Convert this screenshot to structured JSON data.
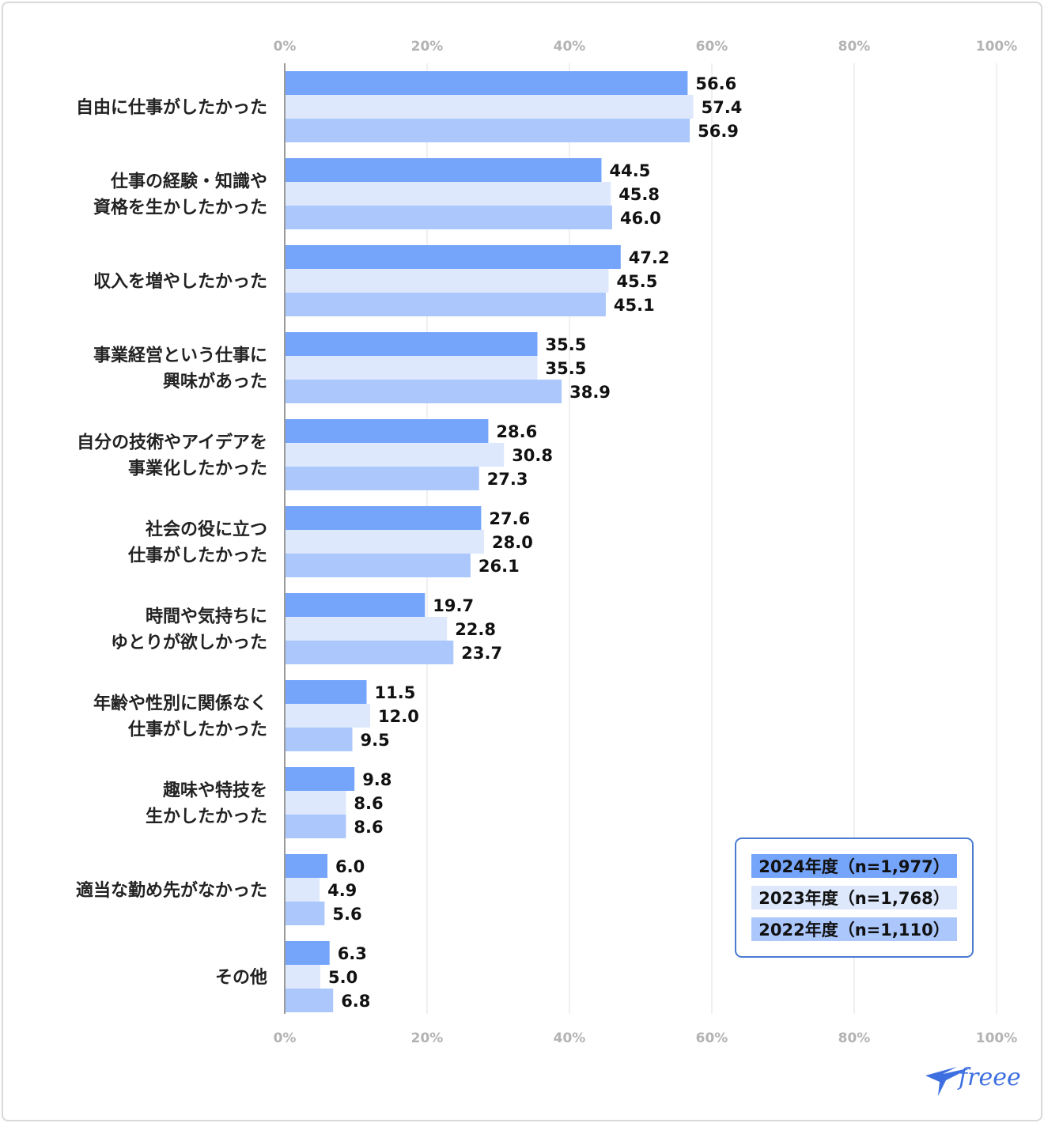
{
  "chart_data": {
    "type": "bar",
    "orientation": "horizontal",
    "categories": [
      [
        "自由に仕事がしたかった"
      ],
      [
        "仕事の経験・知識や",
        "資格を生かしたかった"
      ],
      [
        "収入を増やしたかった"
      ],
      [
        "事業経営という仕事に",
        "興味があった"
      ],
      [
        "自分の技術やアイデアを",
        "事業化したかった"
      ],
      [
        "社会の役に立つ",
        "仕事がしたかった"
      ],
      [
        "時間や気持ちに",
        "ゆとりが欲しかった"
      ],
      [
        "年齢や性別に関係なく",
        "仕事がしたかった"
      ],
      [
        "趣味や特技を",
        "生かしたかった"
      ],
      [
        "適当な勤め先がなかった"
      ],
      [
        "その他"
      ]
    ],
    "series": [
      {
        "name": "2024年度（n=1,977）",
        "color": "#75a4fb",
        "values": [
          56.6,
          44.5,
          47.2,
          35.5,
          28.6,
          27.6,
          19.7,
          11.5,
          9.8,
          6.0,
          6.3
        ],
        "labels": [
          "56.6",
          "44.5",
          "47.2",
          "35.5",
          "28.6",
          "27.6",
          "19.7",
          "11.5",
          "9.8",
          "6.0",
          "6.3"
        ]
      },
      {
        "name": "2023年度（n=1,768）",
        "color": "#dde8fd",
        "values": [
          57.4,
          45.8,
          45.5,
          35.5,
          30.8,
          28.0,
          22.8,
          12.0,
          8.6,
          4.9,
          5.0
        ],
        "labels": [
          "57.4",
          "45.8",
          "45.5",
          "35.5",
          "30.8",
          "28.0",
          "22.8",
          "12.0",
          "8.6",
          "4.9",
          "5.0"
        ]
      },
      {
        "name": "2022年度（n=1,110）",
        "color": "#abc7fc",
        "values": [
          56.9,
          46.0,
          45.1,
          38.9,
          27.3,
          26.1,
          23.7,
          9.5,
          8.6,
          5.6,
          6.8
        ],
        "labels": [
          "56.9",
          "46.0",
          "45.1",
          "38.9",
          "27.3",
          "26.1",
          "23.7",
          "9.5",
          "8.6",
          "5.6",
          "6.8"
        ]
      }
    ],
    "xlim": [
      0,
      100
    ],
    "xticks": [
      "0%",
      "20%",
      "40%",
      "60%",
      "80%",
      "100%"
    ],
    "grid": true,
    "legend_position": "bottom-right",
    "axis_color": "#9a9a9a",
    "grid_color": "#ececec",
    "legend_border_color": "#4a7bd0"
  },
  "brand": {
    "logo_text": "freee",
    "color": "#3d6fe0"
  }
}
